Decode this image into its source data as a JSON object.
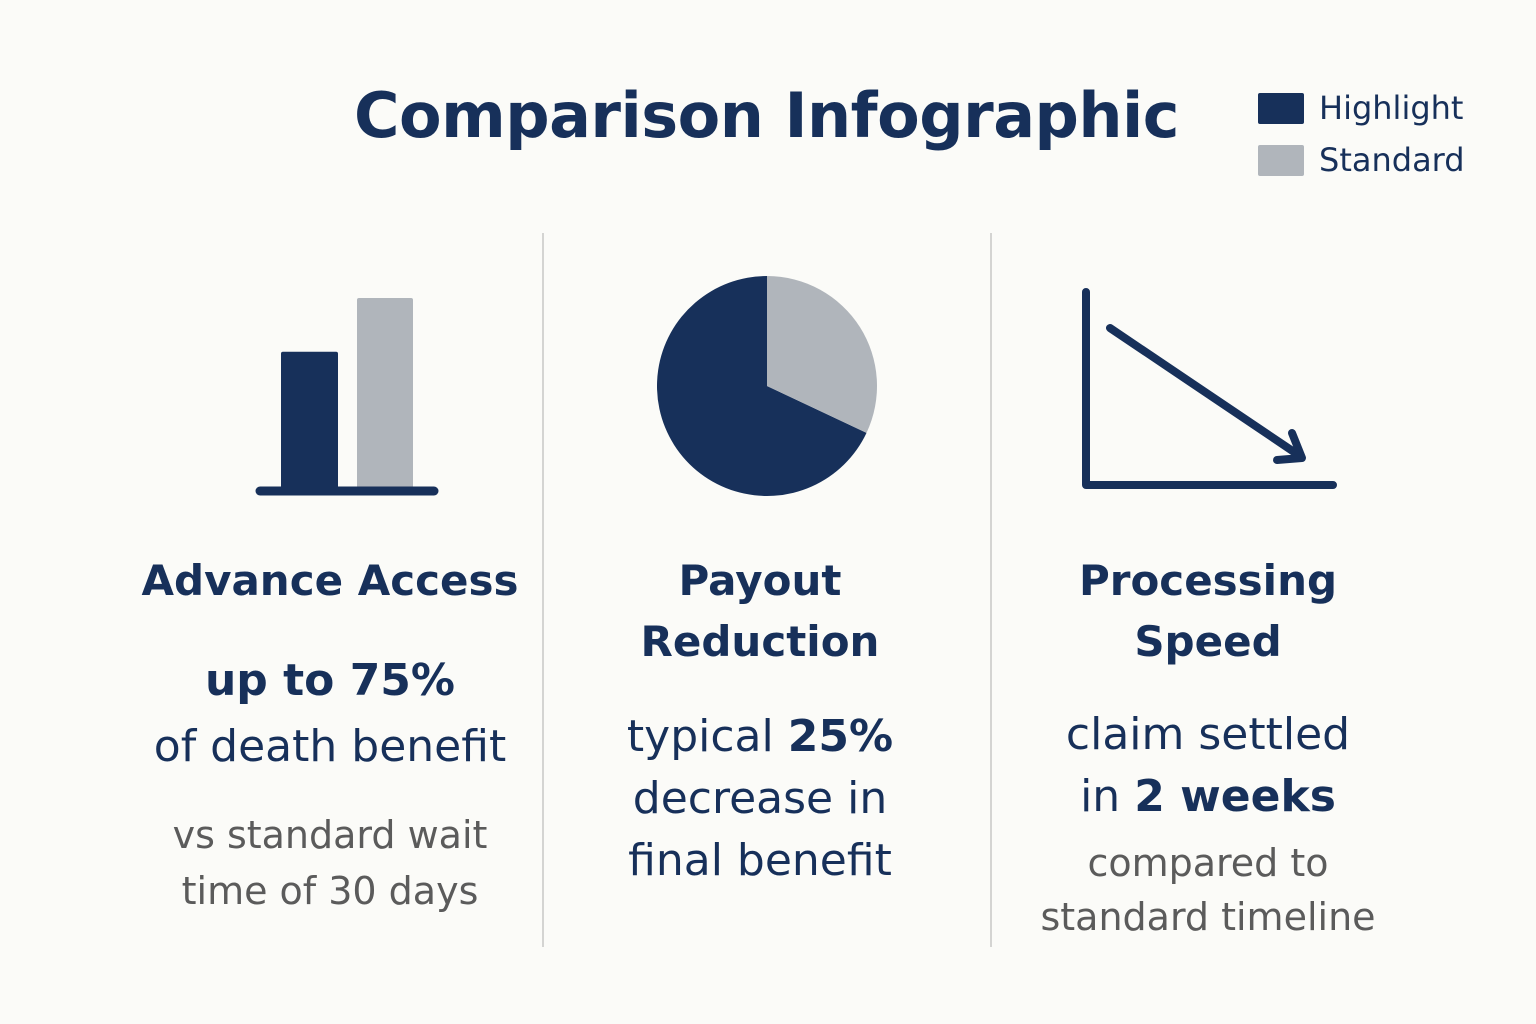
{
  "title": "Comparison Infographic",
  "legend": {
    "items": [
      {
        "label": "Highlight",
        "color": "#17305a"
      },
      {
        "label": "Standard",
        "color": "#b0b5bb"
      }
    ]
  },
  "colors": {
    "highlight": "#17305a",
    "standard": "#b0b5bb",
    "muted_text": "#5b5b5b",
    "background": "#fbfbf8"
  },
  "columns": [
    {
      "icon": "bar-chart-icon",
      "heading_lines": [
        "Advance Access"
      ],
      "stat_lines": [
        {
          "pre": "",
          "bold": "up to 75%",
          "post": ""
        },
        {
          "pre": "of death benefit",
          "bold": "",
          "post": ""
        }
      ],
      "note_lines": [
        "vs standard wait",
        "time of 30 days"
      ]
    },
    {
      "icon": "pie-chart-icon",
      "heading_lines": [
        "Payout",
        "Reduction"
      ],
      "stat_lines": [
        {
          "pre": "typical ",
          "bold": "25%",
          "post": ""
        },
        {
          "pre": "decrease in",
          "bold": "",
          "post": ""
        },
        {
          "pre": "final benefit",
          "bold": "",
          "post": ""
        }
      ],
      "note_lines": []
    },
    {
      "icon": "trend-down-icon",
      "heading_lines": [
        "Processing",
        "Speed"
      ],
      "stat_lines": [
        {
          "pre": "claim settled",
          "bold": "",
          "post": ""
        },
        {
          "pre": "in ",
          "bold": "2 weeks",
          "post": ""
        }
      ],
      "note_lines": [
        "compared to",
        "standard timeline"
      ]
    }
  ],
  "icon_data": {
    "bar_chart": {
      "highlight_value": 0.72,
      "standard_value": 1.0
    },
    "pie_chart": {
      "highlight_fraction": 0.68,
      "standard_fraction": 0.32
    }
  }
}
